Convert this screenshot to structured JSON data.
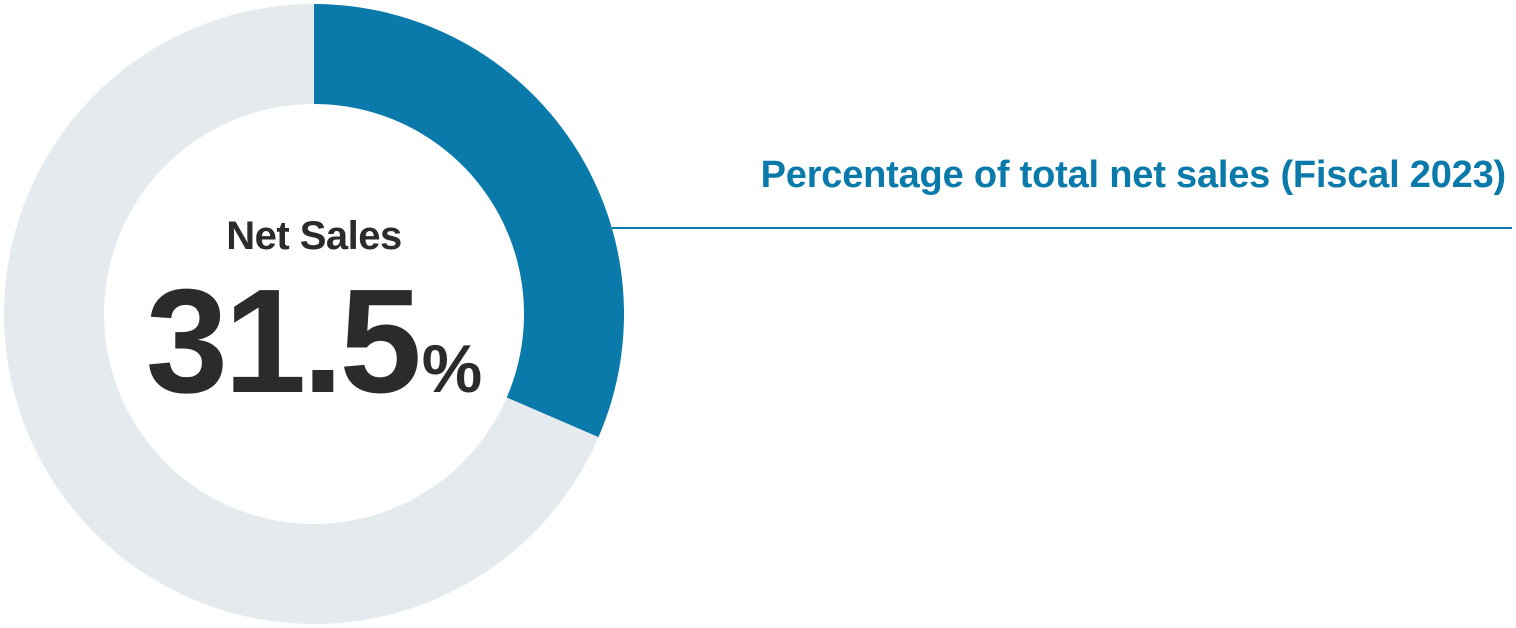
{
  "colors": {
    "accent": "#0a7aab",
    "track": "#e4eaed",
    "text_dark": "#2b2b2b"
  },
  "chart_data": {
    "type": "pie",
    "style": "donut",
    "title": "Percentage of total net sales (Fiscal 2023)",
    "center_label": "Net Sales",
    "center_value": "31.5",
    "center_unit": "%",
    "slices": [
      {
        "label": "Net Sales",
        "value": 31.5,
        "color": "#0a7aab"
      },
      {
        "label": "",
        "value": 68.5,
        "color": "#e4eaed"
      }
    ]
  }
}
